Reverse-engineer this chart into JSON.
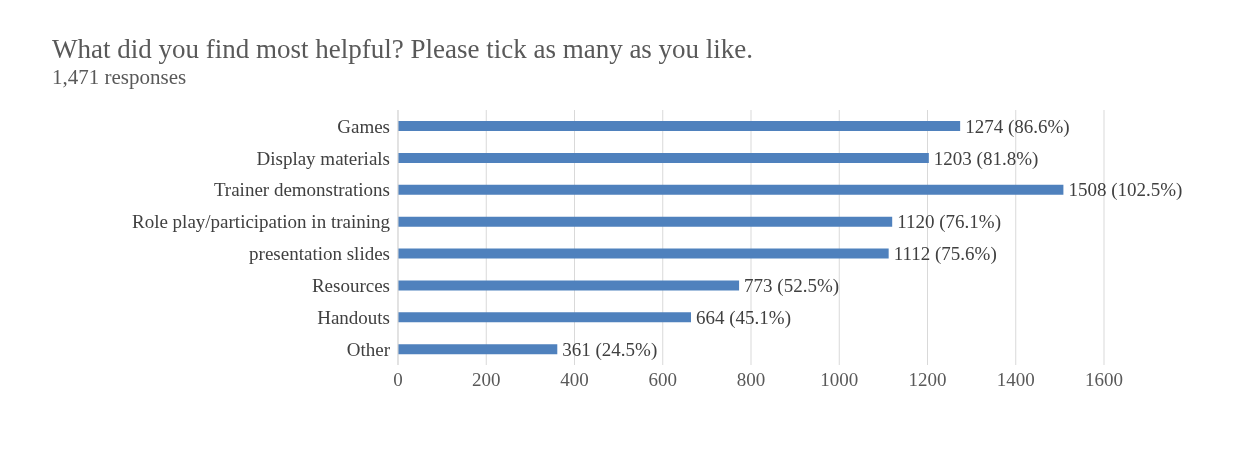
{
  "chart_data": {
    "type": "bar",
    "orientation": "horizontal",
    "title": "What did you find most helpful? Please tick as many as you like.",
    "subtitle": "1,471 responses",
    "categories": [
      "Games",
      "Display materials",
      "Trainer demonstrations",
      "Role play/participation in training",
      "presentation slides",
      "Resources",
      "Handouts",
      "Other"
    ],
    "values": [
      1274,
      1203,
      1508,
      1120,
      1112,
      773,
      664,
      361
    ],
    "value_labels": [
      "1274 (86.6%)",
      "1203 (81.8%)",
      "1508 (102.5%)",
      "1120 (76.1%)",
      "1112 (75.6%)",
      "773 (52.5%)",
      "664 (45.1%)",
      "361 (24.5%)"
    ],
    "color": "#4f81bd",
    "xlim": [
      0,
      1600
    ],
    "xticks": [
      0,
      200,
      400,
      600,
      800,
      1000,
      1200,
      1400,
      1600
    ],
    "grid": "x",
    "legend": false
  }
}
